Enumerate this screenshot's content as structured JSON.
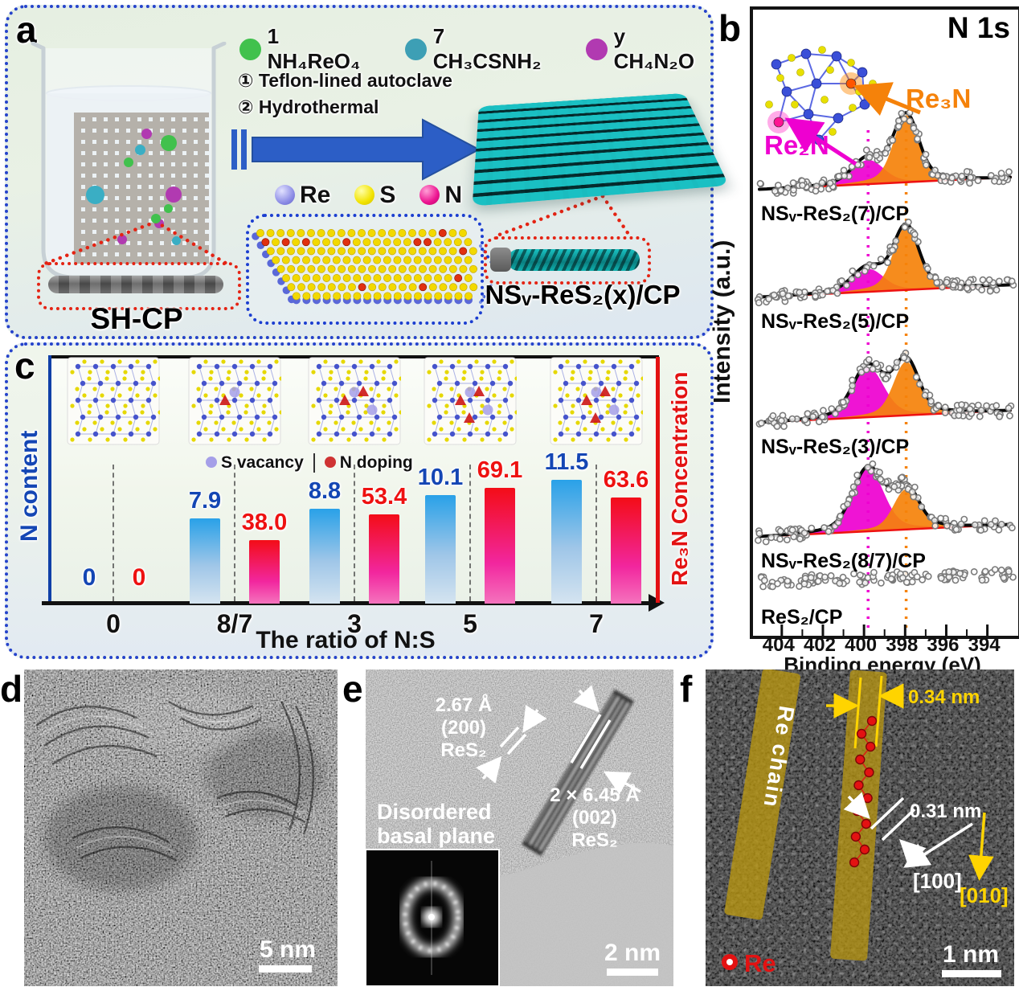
{
  "figure_label": {
    "a": "a",
    "b": "b",
    "c": "c",
    "d": "d",
    "e": "e",
    "f": "f"
  },
  "panel_a": {
    "reagents": [
      {
        "name": "1 NH₄ReO₄",
        "color": "#41c14d"
      },
      {
        "name": "7 CH₃CSNH₂",
        "color": "#3d9fb5"
      },
      {
        "name": "y CH₄N₂O",
        "color": "#b13ab1"
      }
    ],
    "steps": [
      "① Teflon-lined autoclave",
      "② Hydrothermal"
    ],
    "atom_legend": [
      {
        "symbol": "Re",
        "color": "#8e8ee6"
      },
      {
        "symbol": "S",
        "color": "#f2e300"
      },
      {
        "symbol": "N",
        "color": "#ec1390"
      }
    ],
    "precursor_label": "SH-CP",
    "product_label": "NSᵥ-ReS₂(x)/CP"
  },
  "chart_data": [
    {
      "id": "xps-n1s",
      "type": "line",
      "title": "N 1s",
      "xlabel": "Binding energy (eV)",
      "ylabel": "Intensity (a.u.)",
      "x_ticks": [
        404,
        402,
        400,
        398,
        396,
        394
      ],
      "x_axis_reversed": true,
      "components": [
        {
          "name": "Re₂N",
          "center_ev": 399.8,
          "color": "#ee00d0"
        },
        {
          "name": "Re₃N",
          "center_ev": 397.95,
          "color": "#f5820a"
        }
      ],
      "series": [
        {
          "label": "NSᵥ-ReS₂(7)/CP",
          "re2n": 0.36,
          "re3n": 1.0
        },
        {
          "label": "NSᵥ-ReS₂(5)/CP",
          "re2n": 0.34,
          "re3n": 0.95
        },
        {
          "label": "NSᵥ-ReS₂(3)/CP",
          "re2n": 0.74,
          "re3n": 0.8
        },
        {
          "label": "NSᵥ-ReS₂(8/7)/CP",
          "re2n": 0.93,
          "re3n": 0.6
        },
        {
          "label": "ReS₂/CP",
          "re2n": 0,
          "re3n": 0
        }
      ]
    },
    {
      "id": "ratio-bars",
      "type": "bar",
      "categories": [
        "0",
        "8/7",
        "3",
        "5",
        "7"
      ],
      "xlabel": "The ratio of N:S",
      "ylabel_left": "N content",
      "ylabel_right": "Re₃N Concentration",
      "series": [
        {
          "name": "N content",
          "values": [
            0,
            7.9,
            8.8,
            10.1,
            11.5
          ],
          "value_labels": [
            "0",
            "7.9",
            "8.8",
            "10.1",
            "11.5"
          ],
          "bar_color_top": "#29a1e8",
          "bar_color_bottom": "#d5e4f0",
          "label_color": "#1446b4"
        },
        {
          "name": "Re₃N Concentration",
          "values": [
            0,
            38.0,
            53.4,
            69.1,
            63.6
          ],
          "value_labels": [
            "0",
            "38.0",
            "53.4",
            "69.1",
            "63.6"
          ],
          "bar_color_top": "#f30d17",
          "bar_color_bottom": "#f573bd",
          "label_color": "#ee1111"
        }
      ],
      "legend": [
        {
          "text": "S vacancy",
          "color": "#a59fe8"
        },
        {
          "text": "N doping",
          "color": "#cf3333"
        }
      ],
      "inset_defects": {
        "s_vacancy": [
          0,
          1,
          2,
          2,
          2
        ],
        "n_doping": [
          0,
          1,
          2,
          3,
          3
        ]
      }
    }
  ],
  "panel_d": {
    "scale_bar": "5 nm"
  },
  "panel_e": {
    "d200": [
      "2.67 Å",
      "(200)",
      "ReS₂"
    ],
    "d002": [
      "2 × 6.45 Å",
      "(002)",
      "ReS₂"
    ],
    "note_line1": "Disordered",
    "note_line2": "basal plane",
    "scale_bar": "2 nm"
  },
  "panel_f": {
    "chain_label": "Re chain",
    "spacing_1": "0.34 nm",
    "spacing_2": "0.31 nm",
    "direction_1": "[100]",
    "direction_2": "[010]",
    "atom_label": "Re",
    "scale_bar": "1 nm"
  }
}
